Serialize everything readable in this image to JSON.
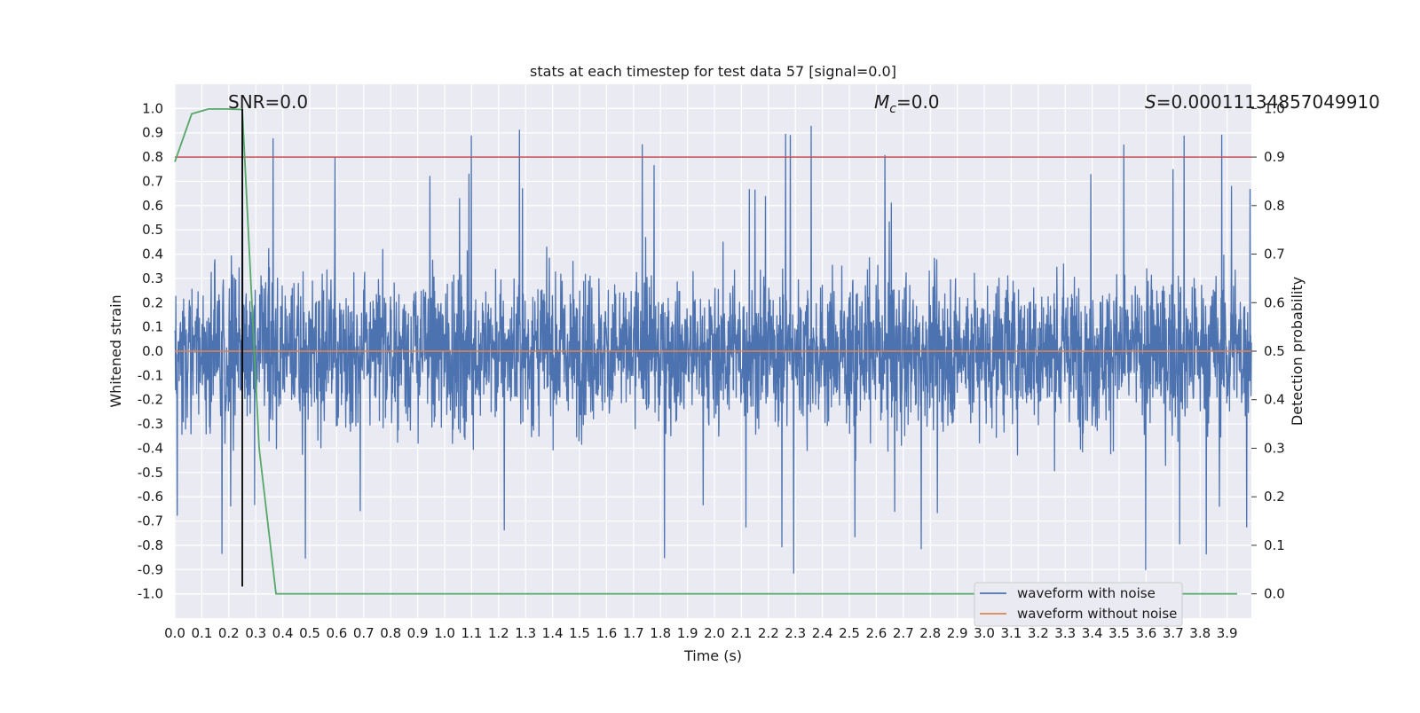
{
  "colors": {
    "background": "#ffffff",
    "plot_bg": "#eaeaf2",
    "grid": "#ffffff",
    "noisy": "#4c72b0",
    "clean": "#dd8452",
    "prob": "#55a868",
    "threshold": "#c44e52",
    "marker": "#000000"
  },
  "chart_data": {
    "type": "line",
    "title": "stats at each timestep for test data 57 [signal=0.0]",
    "xlabel": "Time (s)",
    "ylabel_left": "Whitened strain",
    "ylabel_right": "Detection probability",
    "xlim": [
      0.0,
      3.99
    ],
    "ylim_left": [
      -1.1,
      1.1
    ],
    "ylim_right": [
      -0.05,
      1.05
    ],
    "grid": true,
    "legend_position": "lower-right",
    "x_ticks": [
      "0.0",
      "0.1",
      "0.2",
      "0.3",
      "0.4",
      "0.5",
      "0.6",
      "0.7",
      "0.8",
      "0.9",
      "1.0",
      "1.1",
      "1.2",
      "1.3",
      "1.4",
      "1.5",
      "1.6",
      "1.7",
      "1.8",
      "1.9",
      "2.0",
      "2.1",
      "2.2",
      "2.3",
      "2.4",
      "2.5",
      "2.6",
      "2.7",
      "2.8",
      "2.9",
      "3.0",
      "3.1",
      "3.2",
      "3.3",
      "3.4",
      "3.5",
      "3.6",
      "3.7",
      "3.8",
      "3.9"
    ],
    "y_ticks_left": [
      "1.0",
      "0.9",
      "0.8",
      "0.7",
      "0.6",
      "0.5",
      "0.4",
      "0.3",
      "0.2",
      "0.1",
      "0.0",
      "-0.1",
      "-0.2",
      "-0.3",
      "-0.4",
      "-0.5",
      "-0.6",
      "-0.7",
      "-0.8",
      "-0.9",
      "-1.0"
    ],
    "y_ticks_right": [
      "1.0",
      "0.9",
      "0.8",
      "0.7",
      "0.6",
      "0.5",
      "0.4",
      "0.3",
      "0.2",
      "0.1",
      "0.0"
    ],
    "annotations": {
      "snr": "SNR=0.0",
      "mc_symbol": "M",
      "mc_sub": "c",
      "mc_value": "=0.0",
      "s_symbol": "S",
      "s_value": "=0.00011134857049910"
    },
    "series": [
      {
        "name": "waveform with noise",
        "axis": "left",
        "sample_rate": 2048,
        "note_envelope": "dense noise, mostly between -0.4 and 0.45, spikes to about 1.0 and -0.95"
      },
      {
        "name": "waveform without noise",
        "axis": "left",
        "x": [
          0.0,
          3.99
        ],
        "y": [
          0.0,
          0.0
        ]
      },
      {
        "axis": "right",
        "x": [
          0.0,
          0.0625,
          0.125,
          0.1875,
          0.25,
          0.3125,
          0.375,
          0.4375,
          0.5,
          0.75,
          1.0,
          1.5,
          2.0,
          2.5,
          3.0,
          3.5,
          3.9375
        ],
        "y": [
          0.89,
          0.989,
          0.999,
          0.999,
          0.998,
          0.3,
          0.0,
          0.0,
          0.0,
          0.0,
          0.0,
          0.0,
          0.0,
          0.0,
          0.0,
          0.0,
          0.0
        ]
      }
    ],
    "threshold_line": {
      "axis": "right",
      "y": 0.9
    },
    "marker_line": {
      "axis": "left",
      "x": 0.25,
      "y_range": [
        -0.97,
        1.0
      ]
    },
    "legend": [
      "waveform with noise",
      "waveform without noise"
    ]
  }
}
